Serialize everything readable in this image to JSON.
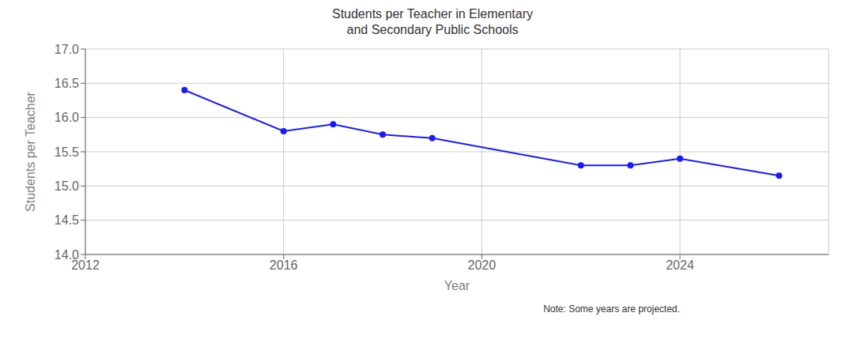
{
  "chart_data": {
    "type": "line",
    "title": "Students per Teacher in Elementary\nand Secondary Public Schools",
    "xlabel": "Year",
    "ylabel": "Students per Teacher",
    "annotations": [
      "Note: Some years are projected."
    ],
    "x": [
      2014,
      2016,
      2017,
      2018,
      2019,
      2022,
      2023,
      2024,
      2026
    ],
    "values": [
      16.4,
      15.8,
      15.9,
      15.75,
      15.7,
      15.3,
      15.3,
      15.4,
      15.15
    ],
    "color": "#1a1aff",
    "marker": "circle",
    "xlim": [
      2012,
      2027
    ],
    "xticks": [
      2012,
      2016,
      2020,
      2024
    ],
    "ylim": [
      14.0,
      17.0
    ],
    "yticks": [
      {
        "value": 14.0,
        "label": "14.0"
      },
      14.5,
      {
        "value": 15.0,
        "label": "15.0"
      },
      15.5,
      {
        "value": 16.0,
        "label": "16.0"
      },
      16.5,
      {
        "value": 17.0,
        "label": "17.0"
      }
    ],
    "grid": true
  }
}
